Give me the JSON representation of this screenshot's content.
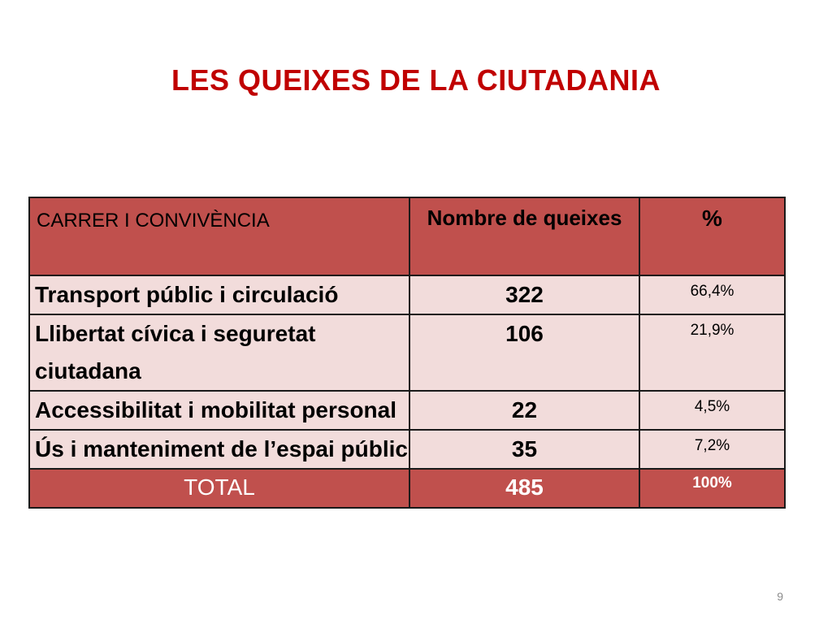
{
  "slide": {
    "title": "LES QUEIXES DE LA CIUTADANIA",
    "page_number": "9"
  },
  "table": {
    "headers": {
      "category": "CARRER I CONVIVÈNCIA",
      "count": "Nombre de queixes",
      "percent": "%"
    },
    "rows": [
      {
        "category": "Transport públic i circulació",
        "count": "322",
        "percent": "66,4%"
      },
      {
        "category": "Llibertat cívica i seguretat ciutadana",
        "count": "106",
        "percent": "21,9%"
      },
      {
        "category": "Accessibilitat i mobilitat personal",
        "count": "22",
        "percent": "4,5%"
      },
      {
        "category": "Ús i manteniment de l’espai públic",
        "count": "35",
        "percent": "7,2%"
      }
    ],
    "total": {
      "label": "TOTAL",
      "count": "485",
      "percent": "100%"
    },
    "colors": {
      "header_fill": "#c0504d",
      "body_fill": "#f2dcdb",
      "title_color": "#c00000"
    }
  }
}
